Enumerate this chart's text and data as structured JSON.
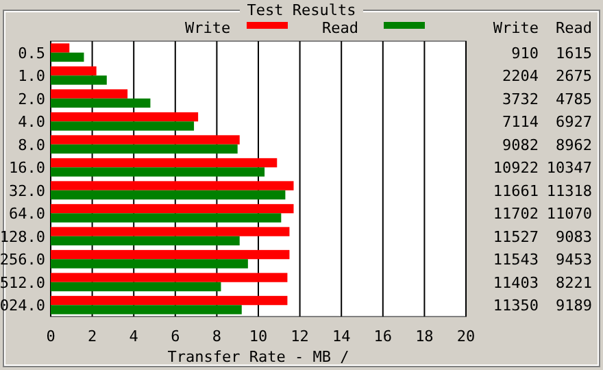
{
  "chart_data": [
    {
      "type": "bar",
      "orientation": "horizontal",
      "title": "Test Results",
      "xlabel": "Transfer Rate - MB /",
      "categories": [
        "0.5",
        "1.0",
        "2.0",
        "4.0",
        "8.0",
        "16.0",
        "32.0",
        "64.0",
        "128.0",
        "256.0",
        "512.0",
        "024.0"
      ],
      "series": [
        {
          "name": "Write",
          "color": "#ff0000",
          "values": [
            0.9,
            2.2,
            3.7,
            7.1,
            9.1,
            10.9,
            11.7,
            11.7,
            11.5,
            11.5,
            11.4,
            11.4
          ]
        },
        {
          "name": "Read",
          "color": "#008000",
          "values": [
            1.6,
            2.7,
            4.8,
            6.9,
            9.0,
            10.3,
            11.3,
            11.1,
            9.1,
            9.5,
            8.2,
            9.2
          ]
        }
      ],
      "xlim": [
        0,
        20
      ],
      "xticks": [
        0,
        2,
        4,
        6,
        8,
        10,
        12,
        14,
        16,
        18,
        20
      ],
      "grid": "x",
      "legend": "top"
    },
    {
      "type": "other",
      "annotations": [
        "Write",
        "Read",
        "910",
        "1615",
        "2204",
        "2675",
        "3732",
        "4785",
        "7114",
        "6927",
        "9082",
        "8962",
        "10922",
        "10347",
        "11661",
        "11318",
        "11702",
        "11070",
        "11527",
        "9083",
        "11543",
        "9453",
        "11403",
        "8221",
        "11350",
        "9189"
      ]
    }
  ]
}
